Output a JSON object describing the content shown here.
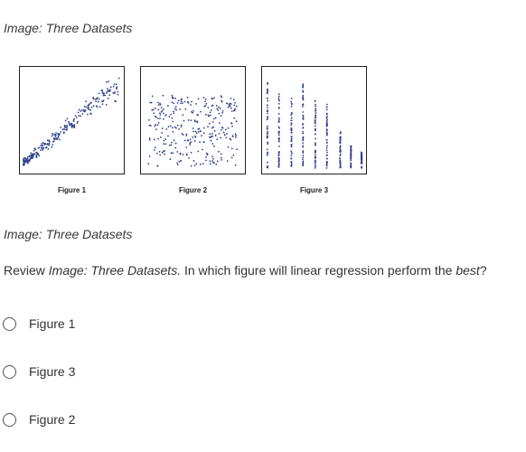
{
  "image_caption": "Image: Three Datasets",
  "figures": [
    {
      "label": "Figure 1"
    },
    {
      "label": "Figure 2"
    },
    {
      "label": "Figure 3"
    }
  ],
  "question": {
    "prefix": "Review ",
    "reference": "Image: Three Datasets.",
    "middle": " In which figure will linear regression perform the ",
    "emphasis": "best",
    "suffix": "?"
  },
  "options": [
    {
      "label": "Figure 1"
    },
    {
      "label": "Figure 3"
    },
    {
      "label": "Figure 2"
    }
  ],
  "colors": {
    "points": "#2c3e8c"
  }
}
